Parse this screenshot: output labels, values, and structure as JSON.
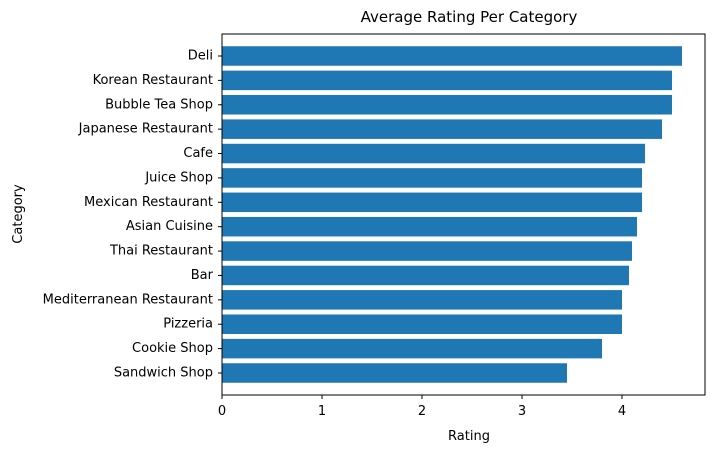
{
  "chart_data": {
    "type": "bar",
    "orientation": "horizontal",
    "title": "Average Rating Per Category",
    "xlabel": "Rating",
    "ylabel": "Category",
    "categories": [
      "Deli",
      "Korean Restaurant",
      "Bubble Tea Shop",
      "Japanese Restaurant",
      "Cafe",
      "Juice Shop",
      "Mexican Restaurant",
      "Asian Cuisine ",
      "Thai Restaurant",
      "Bar",
      "Mediterranean Restaurant",
      "Pizzeria",
      "Cookie Shop",
      "Sandwich Shop"
    ],
    "values": [
      4.6,
      4.5,
      4.5,
      4.4,
      4.23,
      4.2,
      4.2,
      4.15,
      4.1,
      4.07,
      4.0,
      4.0,
      3.8,
      3.45
    ],
    "xlim": [
      0,
      4.83
    ],
    "xticks": [
      "0",
      "1",
      "2",
      "3",
      "4"
    ],
    "bar_color": "#1f77b4",
    "grid": false,
    "legend": "none"
  }
}
